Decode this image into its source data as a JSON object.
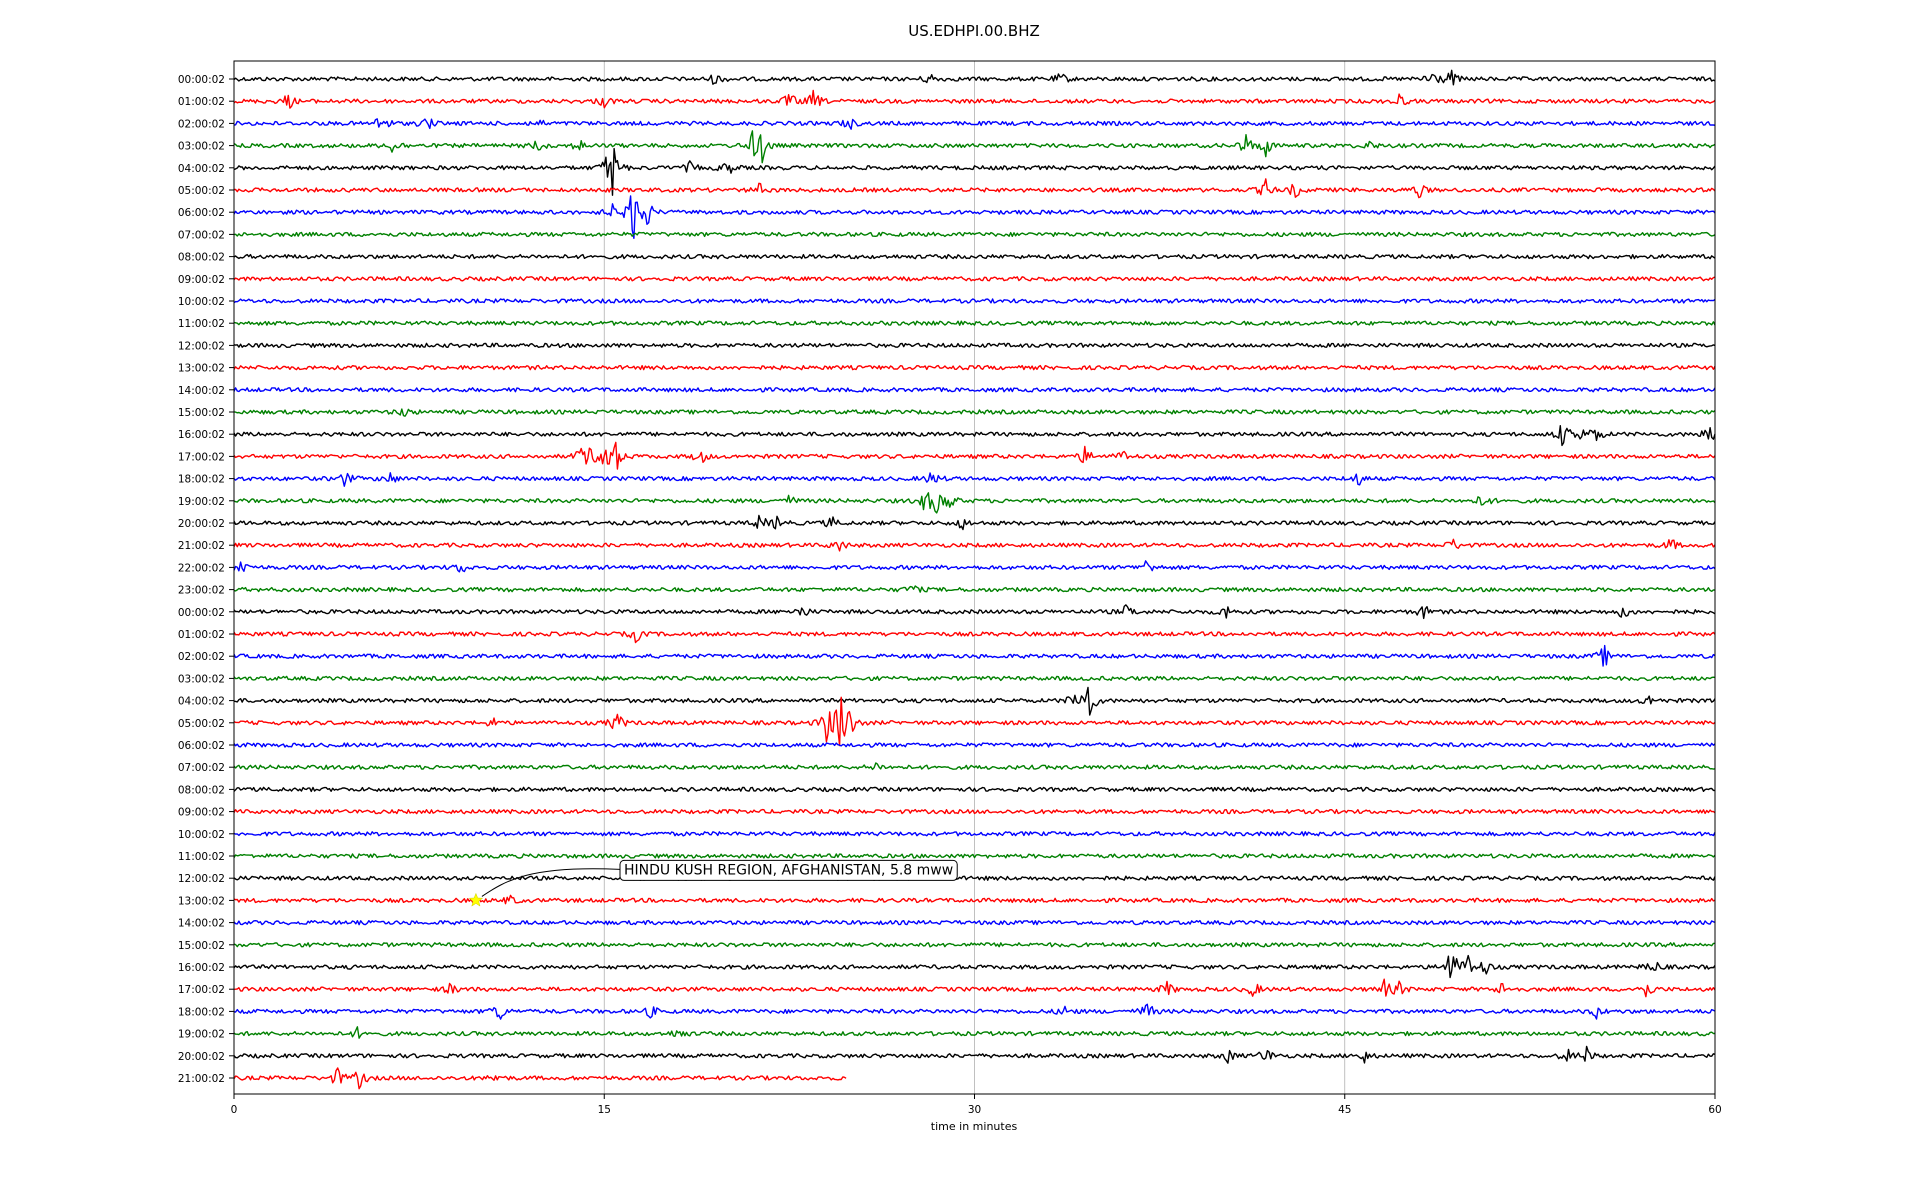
{
  "chart_data": {
    "type": "line",
    "title": "US.EDHPI.00.BHZ",
    "xlabel": "time in minutes",
    "xlim": [
      0,
      60
    ],
    "x_ticks": [
      "0",
      "15",
      "30",
      "45",
      "60"
    ],
    "grid": "vertical",
    "row_colors": [
      "#000000",
      "#ff0000",
      "#0000ff",
      "#008000"
    ],
    "rows": [
      {
        "label": "00:00:02",
        "end_minute": 60,
        "events": [
          {
            "t": 19.5,
            "a": 0.3
          },
          {
            "t": 28.2,
            "a": 0.3
          },
          {
            "t": 33.5,
            "a": 0.3
          },
          {
            "t": 48.5,
            "a": 0.6
          },
          {
            "t": 49.3,
            "a": 0.45
          }
        ]
      },
      {
        "label": "01:00:02",
        "end_minute": 60,
        "events": [
          {
            "t": 2.2,
            "a": 0.4
          },
          {
            "t": 15,
            "a": 0.3
          },
          {
            "t": 22.5,
            "a": 0.45
          },
          {
            "t": 23.5,
            "a": 0.55
          },
          {
            "t": 47.2,
            "a": 0.35
          }
        ]
      },
      {
        "label": "02:00:02",
        "end_minute": 60,
        "events": [
          {
            "t": 6,
            "a": 0.65
          },
          {
            "t": 7.8,
            "a": 0.4
          },
          {
            "t": 12.3,
            "a": 0.2
          },
          {
            "t": 24.9,
            "a": 0.35
          }
        ]
      },
      {
        "label": "03:00:02",
        "end_minute": 60,
        "events": [
          {
            "t": 6.5,
            "a": 0.5
          },
          {
            "t": 12.3,
            "a": 0.3
          },
          {
            "t": 14,
            "a": 0.3
          },
          {
            "t": 21,
            "a": 0.6
          },
          {
            "t": 21.4,
            "a": 0.8
          },
          {
            "t": 41,
            "a": 0.55
          },
          {
            "t": 41.8,
            "a": 0.5
          },
          {
            "t": 46,
            "a": 0.2
          }
        ]
      },
      {
        "label": "04:00:02",
        "end_minute": 60,
        "events": [
          {
            "t": 15.3,
            "a": 2.0
          },
          {
            "t": 18.5,
            "a": 0.3
          },
          {
            "t": 20,
            "a": 0.4
          }
        ]
      },
      {
        "label": "05:00:02",
        "end_minute": 60,
        "events": [
          {
            "t": 21.3,
            "a": 0.3
          },
          {
            "t": 41.8,
            "a": 0.5
          },
          {
            "t": 43,
            "a": 0.4
          },
          {
            "t": 48,
            "a": 0.4
          }
        ]
      },
      {
        "label": "06:00:02",
        "end_minute": 60,
        "events": [
          {
            "t": 15.3,
            "a": 0.4
          },
          {
            "t": 16.2,
            "a": 1.6
          },
          {
            "t": 16.7,
            "a": 0.8
          }
        ]
      },
      {
        "label": "07:00:02",
        "end_minute": 60,
        "events": []
      },
      {
        "label": "08:00:02",
        "end_minute": 60,
        "events": []
      },
      {
        "label": "09:00:02",
        "end_minute": 60,
        "events": []
      },
      {
        "label": "10:00:02",
        "end_minute": 60,
        "events": []
      },
      {
        "label": "11:00:02",
        "end_minute": 60,
        "events": []
      },
      {
        "label": "12:00:02",
        "end_minute": 60,
        "events": []
      },
      {
        "label": "13:00:02",
        "end_minute": 60,
        "events": []
      },
      {
        "label": "14:00:02",
        "end_minute": 60,
        "events": []
      },
      {
        "label": "15:00:02",
        "end_minute": 60,
        "events": [
          {
            "t": 6.9,
            "a": 0.25
          }
        ]
      },
      {
        "label": "16:00:02",
        "end_minute": 60,
        "events": [
          {
            "t": 53.8,
            "a": 0.6
          },
          {
            "t": 54.5,
            "a": 0.45
          },
          {
            "t": 55.2,
            "a": 0.4
          },
          {
            "t": 59.7,
            "a": 0.6
          }
        ]
      },
      {
        "label": "17:00:02",
        "end_minute": 60,
        "events": [
          {
            "t": 14.2,
            "a": 1.0
          },
          {
            "t": 15,
            "a": 1.2
          },
          {
            "t": 15.5,
            "a": 0.7
          },
          {
            "t": 18.9,
            "a": 0.4
          },
          {
            "t": 34.5,
            "a": 0.5
          },
          {
            "t": 36,
            "a": 0.3
          }
        ]
      },
      {
        "label": "18:00:02",
        "end_minute": 60,
        "events": [
          {
            "t": 4.5,
            "a": 0.4
          },
          {
            "t": 6.3,
            "a": 0.35
          },
          {
            "t": 28.3,
            "a": 0.4
          },
          {
            "t": 45.5,
            "a": 0.4
          }
        ]
      },
      {
        "label": "19:00:02",
        "end_minute": 60,
        "events": [
          {
            "t": 22.5,
            "a": 0.25
          },
          {
            "t": 28,
            "a": 0.6
          },
          {
            "t": 28.5,
            "a": 0.7
          },
          {
            "t": 29,
            "a": 0.4
          },
          {
            "t": 50.6,
            "a": 0.4
          }
        ]
      },
      {
        "label": "20:00:02",
        "end_minute": 60,
        "events": [
          {
            "t": 21.3,
            "a": 0.4
          },
          {
            "t": 22,
            "a": 0.3
          },
          {
            "t": 24.2,
            "a": 0.3
          },
          {
            "t": 29.5,
            "a": 0.3
          }
        ]
      },
      {
        "label": "21:00:02",
        "end_minute": 60,
        "events": [
          {
            "t": 24.5,
            "a": 0.35
          },
          {
            "t": 49.4,
            "a": 0.3
          },
          {
            "t": 58.2,
            "a": 0.35
          }
        ]
      },
      {
        "label": "22:00:02",
        "end_minute": 60,
        "events": [
          {
            "t": 0.3,
            "a": 0.45
          },
          {
            "t": 9.2,
            "a": 0.3
          },
          {
            "t": 37,
            "a": 0.45
          }
        ]
      },
      {
        "label": "23:00:02",
        "end_minute": 60,
        "events": [
          {
            "t": 27.5,
            "a": 0.25
          }
        ]
      },
      {
        "label": "00:00:02",
        "end_minute": 60,
        "events": [
          {
            "t": 23,
            "a": 0.35
          },
          {
            "t": 36.2,
            "a": 0.4
          },
          {
            "t": 40.2,
            "a": 0.35
          },
          {
            "t": 48.2,
            "a": 0.35
          },
          {
            "t": 56.3,
            "a": 0.35
          }
        ]
      },
      {
        "label": "01:00:02",
        "end_minute": 60,
        "events": [
          {
            "t": 16.3,
            "a": 0.4
          }
        ]
      },
      {
        "label": "02:00:02",
        "end_minute": 60,
        "events": [
          {
            "t": 55.5,
            "a": 0.6
          }
        ]
      },
      {
        "label": "03:00:02",
        "end_minute": 60,
        "events": []
      },
      {
        "label": "04:00:02",
        "end_minute": 60,
        "events": [
          {
            "t": 34,
            "a": 0.4
          },
          {
            "t": 34.6,
            "a": 1.3
          },
          {
            "t": 57.3,
            "a": 0.3
          }
        ]
      },
      {
        "label": "05:00:02",
        "end_minute": 60,
        "events": [
          {
            "t": 10.5,
            "a": 0.25
          },
          {
            "t": 15.5,
            "a": 0.6
          },
          {
            "t": 24,
            "a": 0.9
          },
          {
            "t": 24.6,
            "a": 2.0
          },
          {
            "t": 25,
            "a": 0.6
          }
        ]
      },
      {
        "label": "06:00:02",
        "end_minute": 60,
        "events": []
      },
      {
        "label": "07:00:02",
        "end_minute": 60,
        "events": [
          {
            "t": 26,
            "a": 0.2
          }
        ]
      },
      {
        "label": "08:00:02",
        "end_minute": 60,
        "events": []
      },
      {
        "label": "09:00:02",
        "end_minute": 60,
        "events": []
      },
      {
        "label": "10:00:02",
        "end_minute": 60,
        "events": []
      },
      {
        "label": "11:00:02",
        "end_minute": 60,
        "events": []
      },
      {
        "label": "12:00:02",
        "end_minute": 60,
        "events": []
      },
      {
        "label": "13:00:02",
        "end_minute": 60,
        "events": [
          {
            "t": 11.2,
            "a": 0.25
          }
        ]
      },
      {
        "label": "14:00:02",
        "end_minute": 60,
        "events": []
      },
      {
        "label": "15:00:02",
        "end_minute": 60,
        "events": []
      },
      {
        "label": "16:00:02",
        "end_minute": 60,
        "events": [
          {
            "t": 49.3,
            "a": 1.2
          },
          {
            "t": 50,
            "a": 0.6
          },
          {
            "t": 50.7,
            "a": 0.4
          },
          {
            "t": 57.5,
            "a": 0.4
          }
        ]
      },
      {
        "label": "17:00:02",
        "end_minute": 60,
        "events": [
          {
            "t": 8.8,
            "a": 0.3
          },
          {
            "t": 37.8,
            "a": 0.4
          },
          {
            "t": 41.3,
            "a": 0.4
          },
          {
            "t": 46.6,
            "a": 0.45
          },
          {
            "t": 47.2,
            "a": 0.35
          },
          {
            "t": 51.4,
            "a": 0.35
          },
          {
            "t": 57.2,
            "a": 0.5
          }
        ]
      },
      {
        "label": "18:00:02",
        "end_minute": 60,
        "events": [
          {
            "t": 10.7,
            "a": 0.6
          },
          {
            "t": 16.9,
            "a": 0.3
          },
          {
            "t": 33.7,
            "a": 0.3
          },
          {
            "t": 37,
            "a": 0.5
          },
          {
            "t": 55.2,
            "a": 0.3
          }
        ]
      },
      {
        "label": "19:00:02",
        "end_minute": 60,
        "events": [
          {
            "t": 5,
            "a": 0.25
          },
          {
            "t": 18,
            "a": 0.3
          }
        ]
      },
      {
        "label": "20:00:02",
        "end_minute": 60,
        "events": [
          {
            "t": 40.3,
            "a": 0.35
          },
          {
            "t": 41.8,
            "a": 0.45
          },
          {
            "t": 45.8,
            "a": 0.3
          },
          {
            "t": 54,
            "a": 0.35
          },
          {
            "t": 54.8,
            "a": 0.4
          }
        ]
      },
      {
        "label": "21:00:02",
        "end_minute": 24.8,
        "events": [
          {
            "t": 4.2,
            "a": 0.5
          },
          {
            "t": 5.1,
            "a": 0.55
          },
          {
            "t": 10.6,
            "a": 0.2
          }
        ]
      }
    ],
    "annotation": {
      "text": "HINDU KUSH REGION, AFGHANISTAN, 5.8 mww",
      "row_label": "13:00:02",
      "minute": 9.8,
      "marker": "star",
      "marker_color": "#ffff00"
    }
  }
}
